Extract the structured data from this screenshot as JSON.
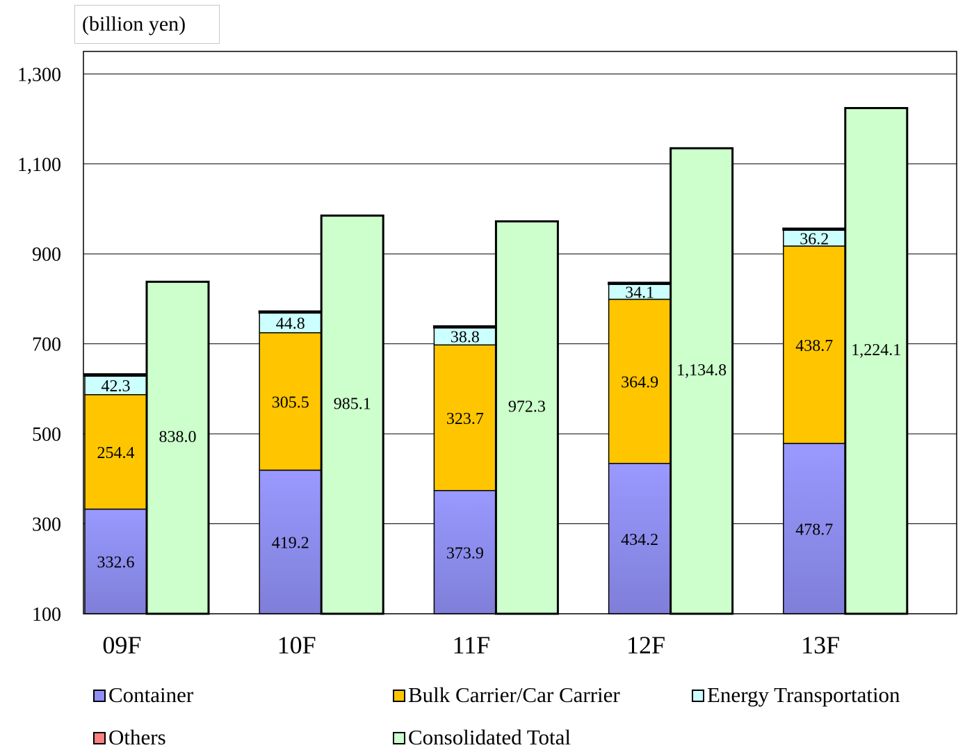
{
  "unit_label": "(billion yen)",
  "chart_data": {
    "type": "bar",
    "stacked": true,
    "categories": [
      "09F",
      "10F",
      "11F",
      "12F",
      "13F"
    ],
    "ylim": [
      100,
      1350
    ],
    "yticks": [
      100,
      300,
      500,
      700,
      900,
      1100,
      1300
    ],
    "ytick_labels": [
      "100",
      "300",
      "500",
      "700",
      "900",
      "1,100",
      "1,300"
    ],
    "grid": true,
    "legend_position": "bottom",
    "series": [
      {
        "name": "Container",
        "stack": "segments",
        "color": "#8f8ff5",
        "values": [
          332.6,
          419.2,
          373.9,
          434.2,
          478.7
        ],
        "labels": [
          "332.6",
          "419.2",
          "373.9",
          "434.2",
          "478.7"
        ]
      },
      {
        "name": "Bulk Carrier/Car Carrier",
        "stack": "segments",
        "color": "#ffc600",
        "values": [
          254.4,
          305.5,
          323.7,
          364.9,
          438.7
        ],
        "labels": [
          "254.4",
          "305.5",
          "323.7",
          "364.9",
          "438.7"
        ]
      },
      {
        "name": "Energy Transportation",
        "stack": "segments",
        "color": "#ccffff",
        "values": [
          42.3,
          44.8,
          38.8,
          34.1,
          36.2
        ],
        "labels": [
          "42.3",
          "44.8",
          "38.8",
          "34.1",
          "36.2"
        ]
      },
      {
        "name": "Others",
        "stack": "segments",
        "color": "#ff8080",
        "values": [
          3.0,
          2.5,
          2.5,
          2.5,
          2.5
        ],
        "labels": []
      },
      {
        "name": "Consolidated Total",
        "stack": "total",
        "color": "#ccffcc",
        "values": [
          838.0,
          985.1,
          972.3,
          1134.8,
          1224.1
        ],
        "labels": [
          "838.0",
          "985.1",
          "972.3",
          "1,134.8",
          "1,224.1"
        ]
      }
    ]
  }
}
